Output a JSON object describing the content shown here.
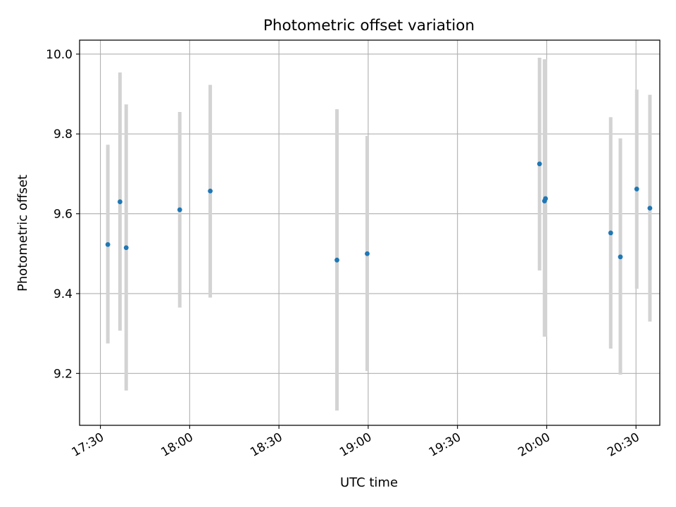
{
  "chart_data": {
    "type": "scatter",
    "title": "Photometric offset variation",
    "xlabel": "UTC time",
    "ylabel": "Photometric offset",
    "grid": true,
    "legend": "none",
    "colors": {
      "point": "#1f77b4",
      "errorbar": "#d3d3d3",
      "grid": "#b0b0b0",
      "axes": "#000000"
    },
    "x_is_time": true,
    "xlim": [
      "17:23",
      "20:38"
    ],
    "ylim": [
      9.07,
      10.035
    ],
    "xticks": [
      "17:30",
      "18:00",
      "18:30",
      "19:00",
      "19:30",
      "20:00",
      "20:30"
    ],
    "yticks": [
      9.2,
      9.4,
      9.6,
      9.8,
      10.0
    ],
    "ytick_labels": [
      "9.2",
      "9.4",
      "9.6",
      "9.8",
      "10.0"
    ],
    "points": [
      {
        "x": "17:32:30",
        "y": 9.523,
        "ylow": 9.275,
        "yhigh": 9.773
      },
      {
        "x": "17:36:35",
        "y": 9.63,
        "ylow": 9.307,
        "yhigh": 9.954
      },
      {
        "x": "17:38:40",
        "y": 9.515,
        "ylow": 9.157,
        "yhigh": 9.874
      },
      {
        "x": "17:56:40",
        "y": 9.61,
        "ylow": 9.365,
        "yhigh": 9.855
      },
      {
        "x": "18:06:55",
        "y": 9.657,
        "ylow": 9.39,
        "yhigh": 9.923
      },
      {
        "x": "18:49:30",
        "y": 9.484,
        "ylow": 9.107,
        "yhigh": 9.862
      },
      {
        "x": "18:59:40",
        "y": 9.5,
        "ylow": 9.206,
        "yhigh": 9.795
      },
      {
        "x": "19:57:35",
        "y": 9.725,
        "ylow": 9.458,
        "yhigh": 9.991
      },
      {
        "x": "19:59:15",
        "y": 9.632,
        "ylow": 9.292,
        "yhigh": 9.987
      },
      {
        "x": "19:59:35",
        "y": 9.638,
        "ylow": 9.292,
        "yhigh": 9.987
      },
      {
        "x": "20:21:30",
        "y": 9.552,
        "ylow": 9.262,
        "yhigh": 9.842
      },
      {
        "x": "20:24:45",
        "y": 9.492,
        "ylow": 9.197,
        "yhigh": 9.789
      },
      {
        "x": "20:30:15",
        "y": 9.662,
        "ylow": 9.412,
        "yhigh": 9.911
      },
      {
        "x": "20:34:40",
        "y": 9.614,
        "ylow": 9.33,
        "yhigh": 9.898
      }
    ]
  }
}
